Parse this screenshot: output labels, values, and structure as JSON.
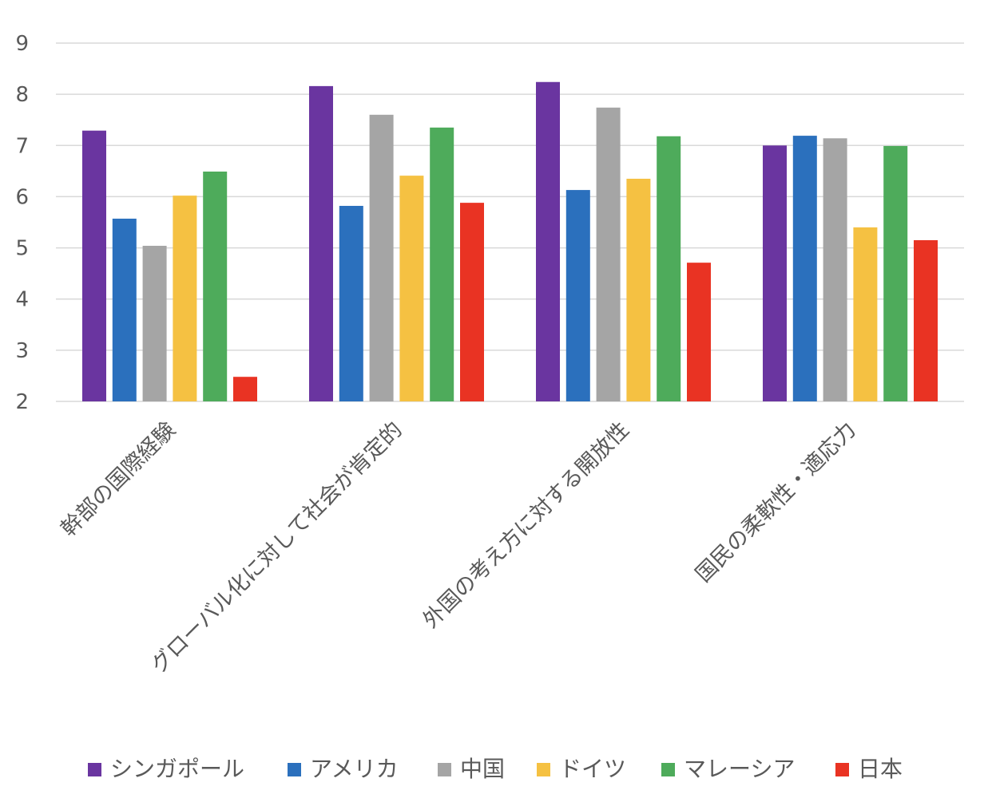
{
  "chart_data": {
    "type": "bar",
    "title": "",
    "xlabel": "",
    "ylabel": "",
    "ylim": [
      2,
      9
    ],
    "yticks": [
      "2",
      "3",
      "4",
      "5",
      "6",
      "7",
      "8",
      "9"
    ],
    "grid": true,
    "legend_position": "bottom",
    "categories": [
      "幹部の国際経験",
      "グローバル化に対して社会が肯定的",
      "外国の考え方に対する開放性",
      "国民の柔軟性・適応力"
    ],
    "series": [
      {
        "name": "シンガポール",
        "color": "#6a35a0",
        "values": [
          7.29,
          8.16,
          8.24,
          7.0
        ]
      },
      {
        "name": "アメリカ",
        "color": "#2b70bd",
        "values": [
          5.57,
          5.82,
          6.13,
          7.19
        ]
      },
      {
        "name": "中国",
        "color": "#a5a5a5",
        "values": [
          5.04,
          7.6,
          7.74,
          7.14
        ]
      },
      {
        "name": "ドイツ",
        "color": "#f5c142",
        "values": [
          6.02,
          6.41,
          6.35,
          5.4
        ]
      },
      {
        "name": "マレーシア",
        "color": "#4eab5b",
        "values": [
          6.49,
          7.35,
          7.18,
          6.99
        ]
      },
      {
        "name": "日本",
        "color": "#e93323",
        "values": [
          2.48,
          5.88,
          4.71,
          5.15
        ]
      }
    ]
  }
}
